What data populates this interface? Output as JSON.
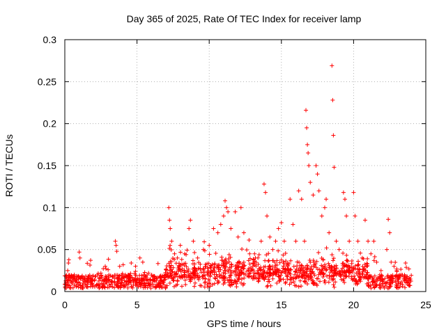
{
  "chart_data": {
    "type": "scatter",
    "title": "Day 365 of 2025, Rate Of TEC Index for receiver lamp",
    "xlabel": "GPS time / hours",
    "ylabel": "ROTI / TECUs",
    "xlim": [
      0,
      25
    ],
    "ylim": [
      0,
      0.3
    ],
    "xticks": [
      0,
      5,
      10,
      15,
      20,
      25
    ],
    "yticks": [
      0,
      0.05,
      0.1,
      0.15,
      0.2,
      0.25,
      0.3
    ],
    "xtick_labels": [
      "0",
      "5",
      "10",
      "15",
      "20",
      "25"
    ],
    "ytick_labels": [
      "0",
      "0.05",
      "0.1",
      "0.15",
      "0.2",
      "0.25",
      "0.3"
    ],
    "grid": true,
    "marker": "+",
    "color": "#ff0000",
    "series": [
      {
        "points": [
          [
            0.1,
            0.009
          ],
          [
            0.2,
            0.025
          ],
          [
            0.25,
            0.034
          ],
          [
            0.35,
            0.018
          ],
          [
            0.5,
            0.012
          ],
          [
            0.7,
            0.015
          ],
          [
            1.0,
            0.047
          ],
          [
            1.05,
            0.04
          ],
          [
            1.2,
            0.018
          ],
          [
            1.5,
            0.014
          ],
          [
            1.8,
            0.016
          ],
          [
            2.1,
            0.018
          ],
          [
            2.5,
            0.022
          ],
          [
            2.8,
            0.03
          ],
          [
            3.0,
            0.026
          ],
          [
            3.5,
            0.06
          ],
          [
            3.55,
            0.055
          ],
          [
            3.6,
            0.048
          ],
          [
            3.8,
            0.03
          ],
          [
            4.2,
            0.02
          ],
          [
            4.6,
            0.034
          ],
          [
            4.9,
            0.03
          ],
          [
            5.2,
            0.04
          ],
          [
            5.4,
            0.035
          ],
          [
            5.8,
            0.022
          ],
          [
            6.2,
            0.018
          ],
          [
            6.6,
            0.016
          ],
          [
            7.0,
            0.02
          ],
          [
            7.2,
            0.1
          ],
          [
            7.25,
            0.085
          ],
          [
            7.3,
            0.075
          ],
          [
            7.4,
            0.06
          ],
          [
            7.6,
            0.045
          ],
          [
            7.8,
            0.04
          ],
          [
            8.0,
            0.055
          ],
          [
            8.3,
            0.045
          ],
          [
            8.6,
            0.075
          ],
          [
            8.7,
            0.085
          ],
          [
            8.9,
            0.06
          ],
          [
            9.2,
            0.04
          ],
          [
            9.6,
            0.05
          ],
          [
            10.0,
            0.055
          ],
          [
            10.3,
            0.075
          ],
          [
            10.6,
            0.07
          ],
          [
            10.8,
            0.08
          ],
          [
            11.0,
            0.09
          ],
          [
            11.1,
            0.108
          ],
          [
            11.2,
            0.1
          ],
          [
            11.3,
            0.095
          ],
          [
            11.5,
            0.075
          ],
          [
            11.8,
            0.095
          ],
          [
            12.0,
            0.065
          ],
          [
            12.2,
            0.1
          ],
          [
            12.4,
            0.07
          ],
          [
            12.8,
            0.045
          ],
          [
            13.2,
            0.04
          ],
          [
            13.6,
            0.06
          ],
          [
            13.8,
            0.128
          ],
          [
            13.9,
            0.118
          ],
          [
            14.0,
            0.09
          ],
          [
            14.2,
            0.065
          ],
          [
            14.4,
            0.05
          ],
          [
            14.6,
            0.06
          ],
          [
            14.8,
            0.075
          ],
          [
            15.0,
            0.082
          ],
          [
            15.2,
            0.06
          ],
          [
            15.6,
            0.11
          ],
          [
            15.8,
            0.08
          ],
          [
            16.0,
            0.06
          ],
          [
            16.2,
            0.12
          ],
          [
            16.4,
            0.11
          ],
          [
            16.6,
            0.06
          ],
          [
            16.7,
            0.216
          ],
          [
            16.75,
            0.195
          ],
          [
            16.8,
            0.175
          ],
          [
            16.85,
            0.165
          ],
          [
            16.9,
            0.15
          ],
          [
            17.0,
            0.13
          ],
          [
            17.2,
            0.115
          ],
          [
            17.4,
            0.15
          ],
          [
            17.5,
            0.14
          ],
          [
            17.6,
            0.12
          ],
          [
            17.8,
            0.09
          ],
          [
            18.0,
            0.1
          ],
          [
            18.1,
            0.11
          ],
          [
            18.3,
            0.07
          ],
          [
            18.5,
            0.269
          ],
          [
            18.55,
            0.228
          ],
          [
            18.6,
            0.186
          ],
          [
            18.65,
            0.148
          ],
          [
            18.8,
            0.06
          ],
          [
            19.0,
            0.05
          ],
          [
            19.3,
            0.118
          ],
          [
            19.4,
            0.11
          ],
          [
            19.5,
            0.09
          ],
          [
            19.7,
            0.06
          ],
          [
            20.0,
            0.118
          ],
          [
            20.1,
            0.09
          ],
          [
            20.3,
            0.06
          ],
          [
            20.6,
            0.04
          ],
          [
            20.8,
            0.085
          ],
          [
            21.0,
            0.06
          ],
          [
            21.2,
            0.045
          ],
          [
            21.4,
            0.06
          ],
          [
            21.6,
            0.035
          ],
          [
            21.9,
            0.025
          ],
          [
            22.3,
            0.05
          ],
          [
            22.4,
            0.086
          ],
          [
            22.5,
            0.07
          ],
          [
            22.6,
            0.035
          ],
          [
            22.8,
            0.03
          ],
          [
            23.0,
            0.024
          ],
          [
            23.3,
            0.02
          ],
          [
            23.6,
            0.034
          ],
          [
            23.9,
            0.015
          ]
        ]
      }
    ]
  }
}
